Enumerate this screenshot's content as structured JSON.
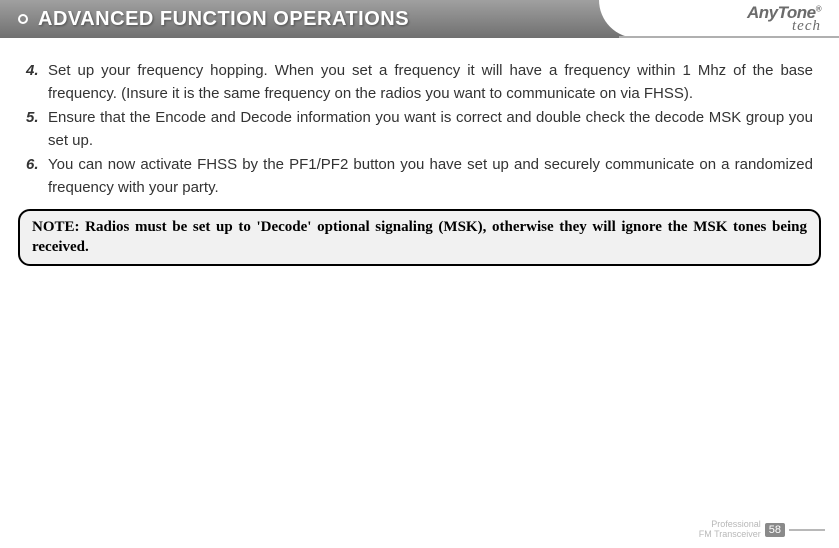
{
  "header": {
    "title": "ADVANCED FUNCTION OPERATIONS"
  },
  "brand": {
    "name": "AnyTone",
    "sub": "tech",
    "reg": "®"
  },
  "items": [
    {
      "num": "4.",
      "text": "Set up your frequency hopping. When you set a frequency it will have a frequency within 1 Mhz of the base frequency. (Insure it is the same frequency on the radios you want to communicate on via FHSS)."
    },
    {
      "num": "5.",
      "text": "Ensure that the Encode and Decode information you want is correct and double check the decode MSK group you set up."
    },
    {
      "num": "6.",
      "text": "You can now activate FHSS by the PF1/PF2 button you have set up and securely communicate on a randomized frequency with your party."
    }
  ],
  "note": "NOTE: Radios must be set up to 'Decode' optional signaling (MSK), otherwise they will ignore the MSK tones being received.",
  "footer": {
    "line1": "Professional",
    "line2": "FM Transceiver",
    "page": "58"
  }
}
